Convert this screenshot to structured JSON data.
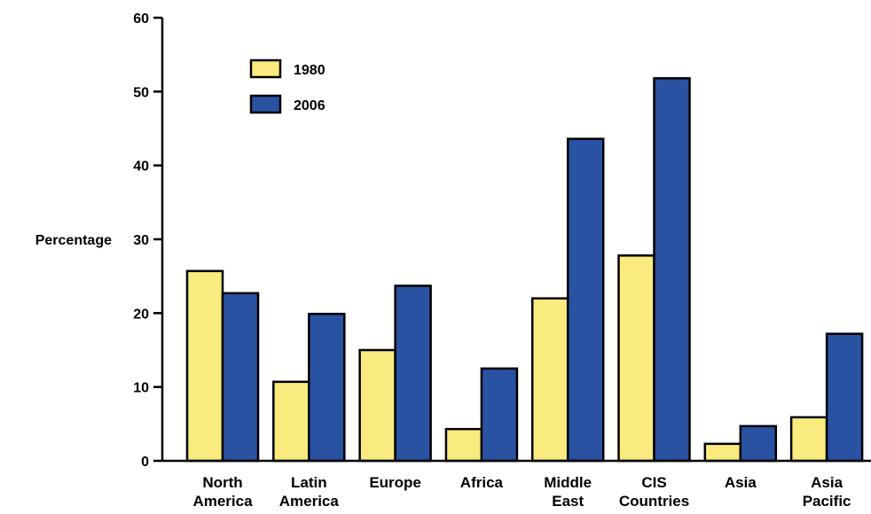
{
  "chart_data": {
    "type": "bar",
    "title": "",
    "xlabel": "",
    "ylabel": "Percentage",
    "ylim": [
      0,
      60
    ],
    "yticks": [
      "0",
      "10",
      "20",
      "30",
      "40",
      "50",
      "60"
    ],
    "categories": [
      [
        "North",
        "America"
      ],
      [
        "Latin",
        "America"
      ],
      [
        "Europe"
      ],
      [
        "Africa"
      ],
      [
        "Middle",
        "East"
      ],
      [
        "CIS",
        "Countries"
      ],
      [
        "Asia"
      ],
      [
        "Asia",
        "Pacific"
      ]
    ],
    "series": [
      {
        "name": "1980",
        "color": "#F9EB7D",
        "values": [
          25.7,
          10.7,
          15.0,
          4.3,
          22.0,
          27.8,
          2.3,
          5.9
        ]
      },
      {
        "name": "2006",
        "color": "#2A52A3",
        "values": [
          22.7,
          19.9,
          23.7,
          12.5,
          43.6,
          51.8,
          4.7,
          17.2
        ]
      }
    ],
    "grid": false,
    "legend_position": "top-left"
  }
}
